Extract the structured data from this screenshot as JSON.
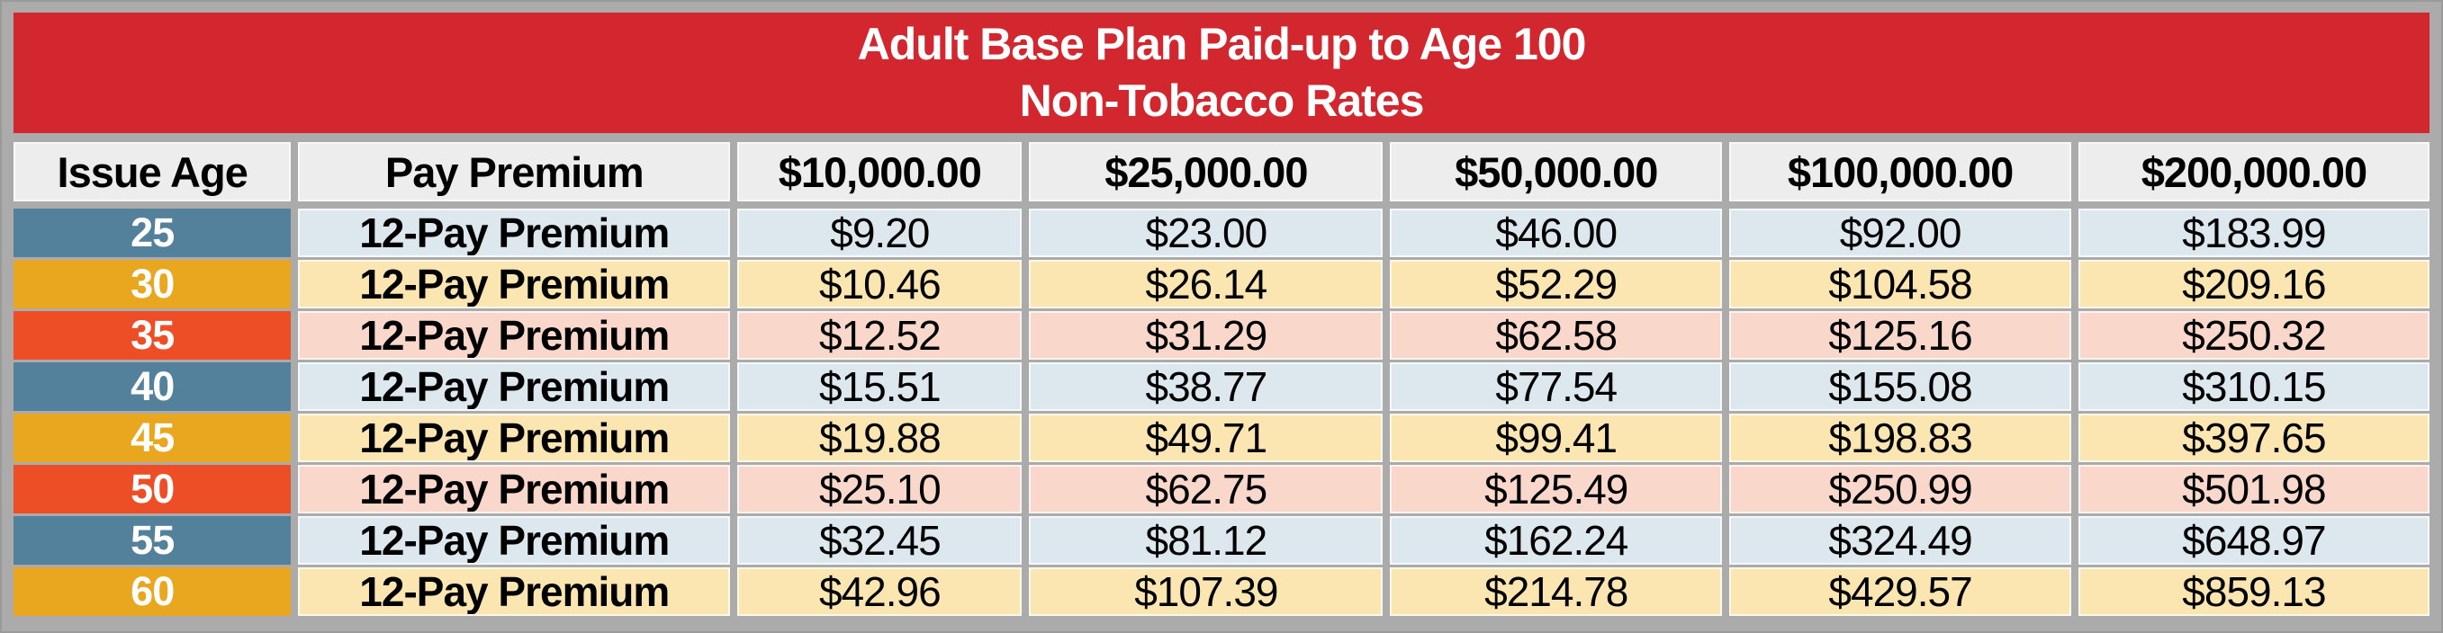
{
  "title": {
    "line1": "Adult Base Plan Paid-up to Age 100",
    "line2": "Non-Tobacco Rates"
  },
  "columns": [
    "Issue Age",
    "Pay Premium",
    "$10,000.00",
    "$25,000.00",
    "$50,000.00",
    "$100,000.00",
    "$200,000.00"
  ],
  "rows": [
    {
      "age": "25",
      "pay": "12-Pay Premium",
      "rates": [
        "$9.20",
        "$23.00",
        "$46.00",
        "$92.00",
        "$183.99"
      ],
      "accent": "#53809a",
      "tint": "#dce8ee"
    },
    {
      "age": "30",
      "pay": "12-Pay Premium",
      "rates": [
        "$10.46",
        "$26.14",
        "$52.29",
        "$104.58",
        "$209.16"
      ],
      "accent": "#e9a71f",
      "tint": "#fbe5b1"
    },
    {
      "age": "35",
      "pay": "12-Pay Premium",
      "rates": [
        "$12.52",
        "$31.29",
        "$62.58",
        "$125.16",
        "$250.32"
      ],
      "accent": "#ee4e25",
      "tint": "#f9d8cb"
    },
    {
      "age": "40",
      "pay": "12-Pay Premium",
      "rates": [
        "$15.51",
        "$38.77",
        "$77.54",
        "$155.08",
        "$310.15"
      ],
      "accent": "#53809a",
      "tint": "#dce8ee"
    },
    {
      "age": "45",
      "pay": "12-Pay Premium",
      "rates": [
        "$19.88",
        "$49.71",
        "$99.41",
        "$198.83",
        "$397.65"
      ],
      "accent": "#e9a71f",
      "tint": "#fbe5b1"
    },
    {
      "age": "50",
      "pay": "12-Pay Premium",
      "rates": [
        "$25.10",
        "$62.75",
        "$125.49",
        "$250.99",
        "$501.98"
      ],
      "accent": "#ee4e25",
      "tint": "#f9d8cb"
    },
    {
      "age": "55",
      "pay": "12-Pay Premium",
      "rates": [
        "$32.45",
        "$81.12",
        "$162.24",
        "$324.49",
        "$648.97"
      ],
      "accent": "#53809a",
      "tint": "#dce8ee"
    },
    {
      "age": "60",
      "pay": "12-Pay Premium",
      "rates": [
        "$42.96",
        "$107.39",
        "$214.78",
        "$429.57",
        "$859.13"
      ],
      "accent": "#e9a71f",
      "tint": "#fbe5b1"
    }
  ],
  "colors": {
    "banner": "#d2272e",
    "banner_text": "#ffffff",
    "header_bg": "#ededed",
    "frame_bg": "#ababab",
    "age_steel": "#53809a",
    "age_amber": "#e9a71f",
    "age_orange": "#ee4e25",
    "tint_blue": "#dce8ee",
    "tint_cream": "#fbe5b1",
    "tint_pink": "#f9d8cb"
  }
}
